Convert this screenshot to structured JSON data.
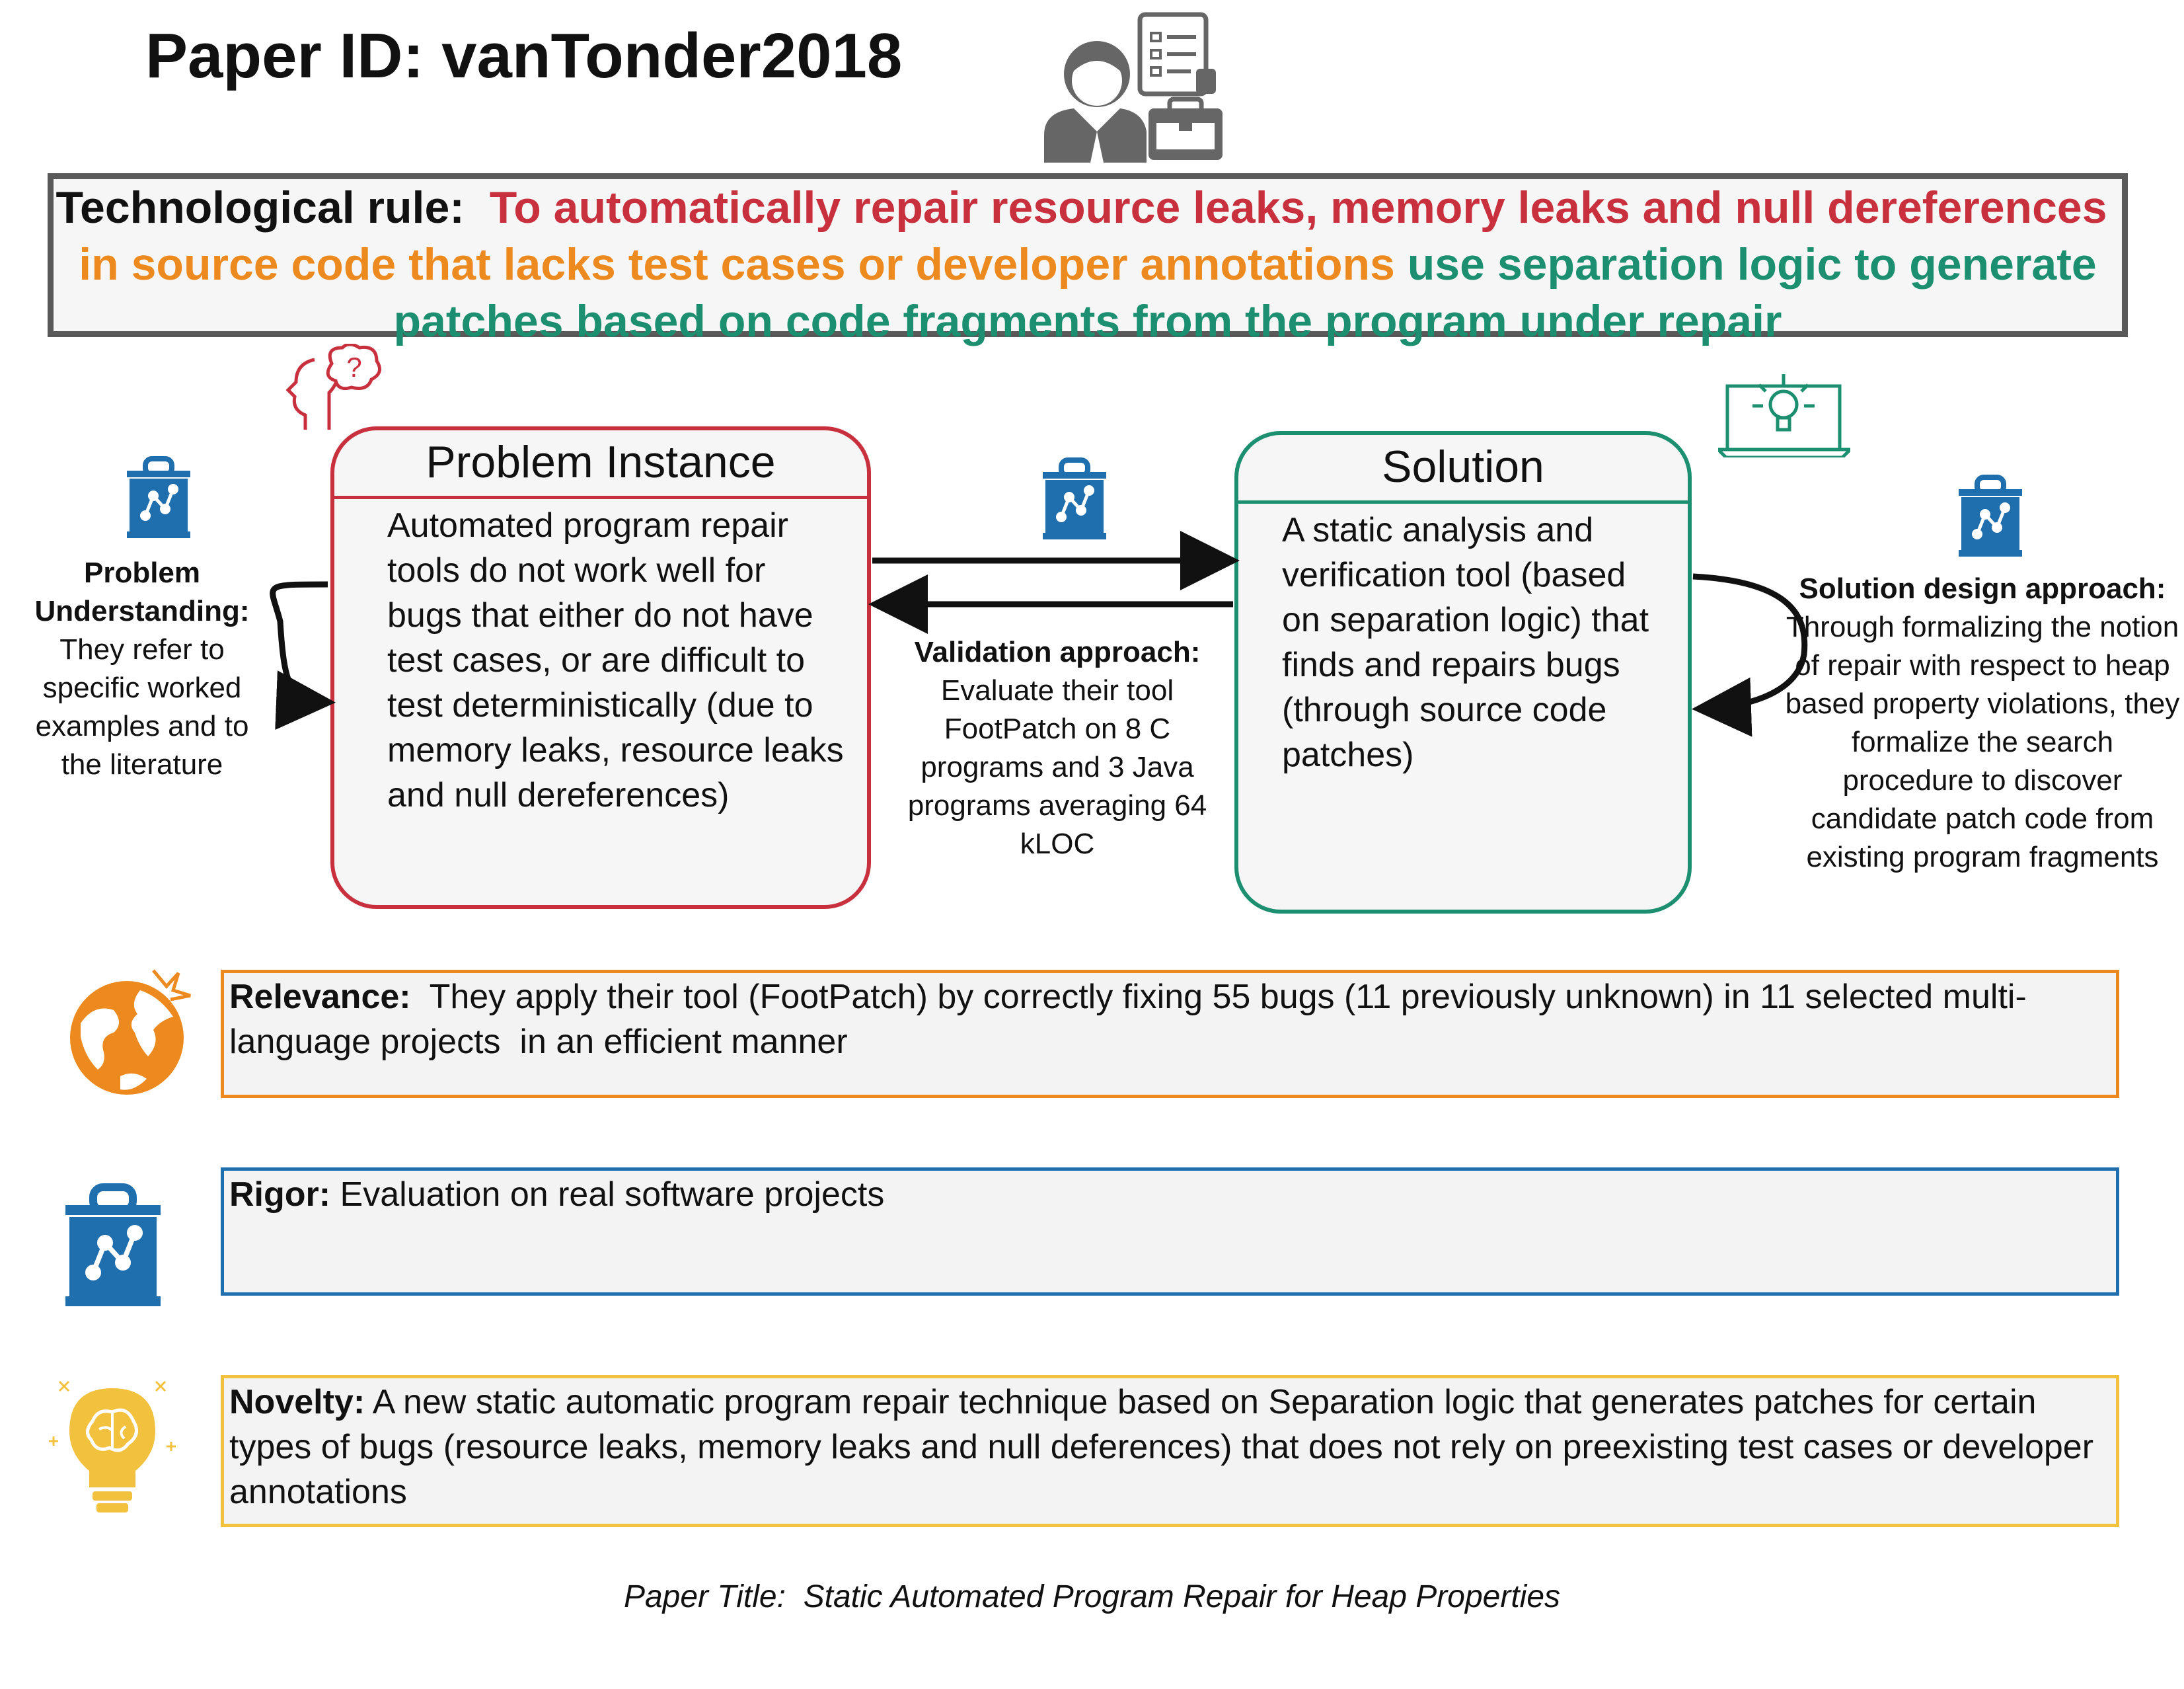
{
  "header": {
    "title": "Paper ID: vanTonder2018"
  },
  "technological_rule": {
    "label": "Technological rule:",
    "problem": "To automatically repair resource leaks, memory leaks and null dereferences",
    "context": "in source code that lacks test cases or developer annotations",
    "solution": "use separation logic  to generate patches based on code fragments from the program under repair"
  },
  "problem_instance": {
    "title": "Problem Instance",
    "text": "Automated program repair tools do not work well for bugs that either do not have test cases, or are difficult to test deterministically (due to memory leaks, resource leaks and null dereferences)"
  },
  "solution": {
    "title": "Solution",
    "text": "A static analysis and verification tool (based on separation logic) that finds and repairs bugs (through source code patches)"
  },
  "problem_understanding": {
    "label": "Problem Understanding:",
    "text": "They refer to specific worked examples and to the literature"
  },
  "validation": {
    "label": "Validation approach:",
    "text": "Evaluate their tool FootPatch on 8 C programs and 3 Java programs averaging 64 kLOC"
  },
  "solution_design": {
    "label": "Solution design approach:",
    "text": "Through formalizing the notion of repair with respect to heap based property violations, they formalize the search procedure to discover candidate patch code from existing program fragments"
  },
  "relevance": {
    "label": "Relevance:",
    "text": "  They apply their tool (FootPatch) by correctly fixing 55 bugs (11 previously unknown) in 11 selected multi-language projects  in an efficient manner"
  },
  "rigor": {
    "label": "Rigor:",
    "text": " Evaluation on real software projects"
  },
  "novelty": {
    "label": "Novelty:",
    "text": " A new static automatic program repair technique based on Separation logic that generates patches for certain types of bugs (resource leaks, memory leaks and null deferences) that does not rely on preexisting test cases or developer annotations"
  },
  "footer": {
    "text": "Paper Title:  Static Automated Program Repair for Heap Properties"
  },
  "colors": {
    "problem": "#c8303d",
    "context": "#ed8a1f",
    "solution": "#1b8f6f",
    "rigor": "#1f6fae",
    "novelty": "#f2c13e",
    "frame": "#595959"
  },
  "icons": [
    "researcher-icon",
    "thinking-head-icon",
    "laptop-lightbulb-icon",
    "toolbox-chart-icon",
    "globe-icon",
    "lightbulb-brain-icon"
  ]
}
